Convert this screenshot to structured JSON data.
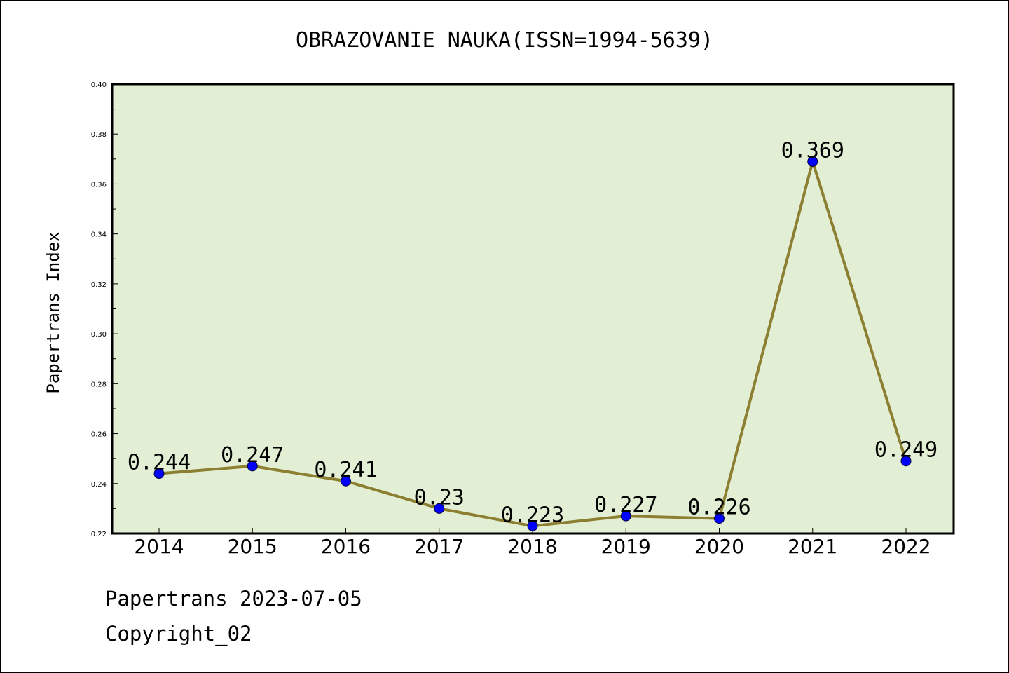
{
  "chart_data": {
    "type": "line",
    "title": "OBRAZOVANIE NAUKA(ISSN=1994-5639)",
    "xlabel": "",
    "ylabel": "Papertrans Index",
    "x": [
      "2014",
      "2015",
      "2016",
      "2017",
      "2018",
      "2019",
      "2020",
      "2021",
      "2022"
    ],
    "series": [
      {
        "values": [
          0.244,
          0.247,
          0.241,
          0.23,
          0.223,
          0.227,
          0.226,
          0.369,
          0.249
        ],
        "data_labels": [
          "0.244",
          "0.247",
          "0.241",
          "0.23",
          "0.223",
          "0.227",
          "0.226",
          "0.369",
          "0.249"
        ]
      }
    ],
    "ylim": [
      0.22,
      0.4
    ],
    "yticks": [
      "0.22",
      "0.24",
      "0.26",
      "0.28",
      "0.30",
      "0.32",
      "0.34",
      "0.36",
      "0.38",
      "0.40"
    ],
    "grid": false,
    "colors": {
      "plot_background": "#e2efd5",
      "line": "#8c7f32",
      "marker": "#0000ff"
    }
  },
  "footer": {
    "line1": "Papertrans 2023-07-05",
    "line2": "Copyright_02"
  }
}
